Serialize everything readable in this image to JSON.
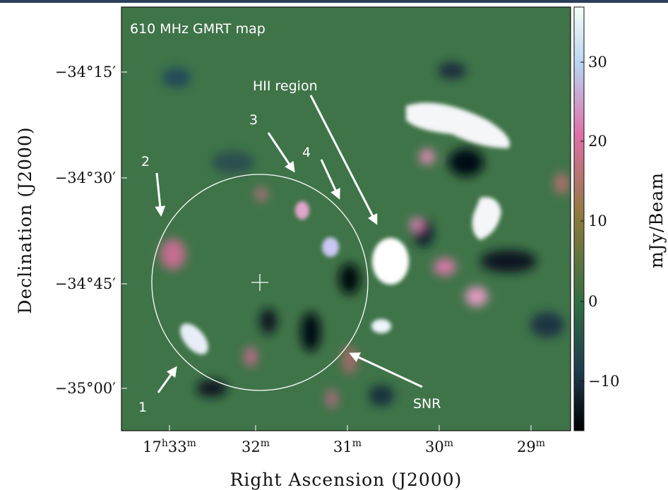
{
  "figure": {
    "annotations": {
      "map_title": "610 MHz GMRT map",
      "hii": "HII region",
      "n1": "1",
      "n2": "2",
      "n3": "3",
      "n4": "4",
      "snr": "SNR"
    },
    "x_axis": {
      "label": "Right Ascension (J2000)",
      "ticks": [
        [
          "17",
          "h",
          "33",
          "m"
        ],
        [
          "32",
          "m"
        ],
        [
          "31",
          "m"
        ],
        [
          "30",
          "m"
        ],
        [
          "29",
          "m"
        ]
      ]
    },
    "y_axis": {
      "label": "Declination (J2000)",
      "ticks": [
        "−34°15′",
        "−34°30′",
        "−34°45′",
        "−35°00′"
      ]
    },
    "colorbar": {
      "label": "mJy/Beam",
      "ticks": [
        "30",
        "20",
        "10",
        "0",
        "−10"
      ]
    }
  }
}
